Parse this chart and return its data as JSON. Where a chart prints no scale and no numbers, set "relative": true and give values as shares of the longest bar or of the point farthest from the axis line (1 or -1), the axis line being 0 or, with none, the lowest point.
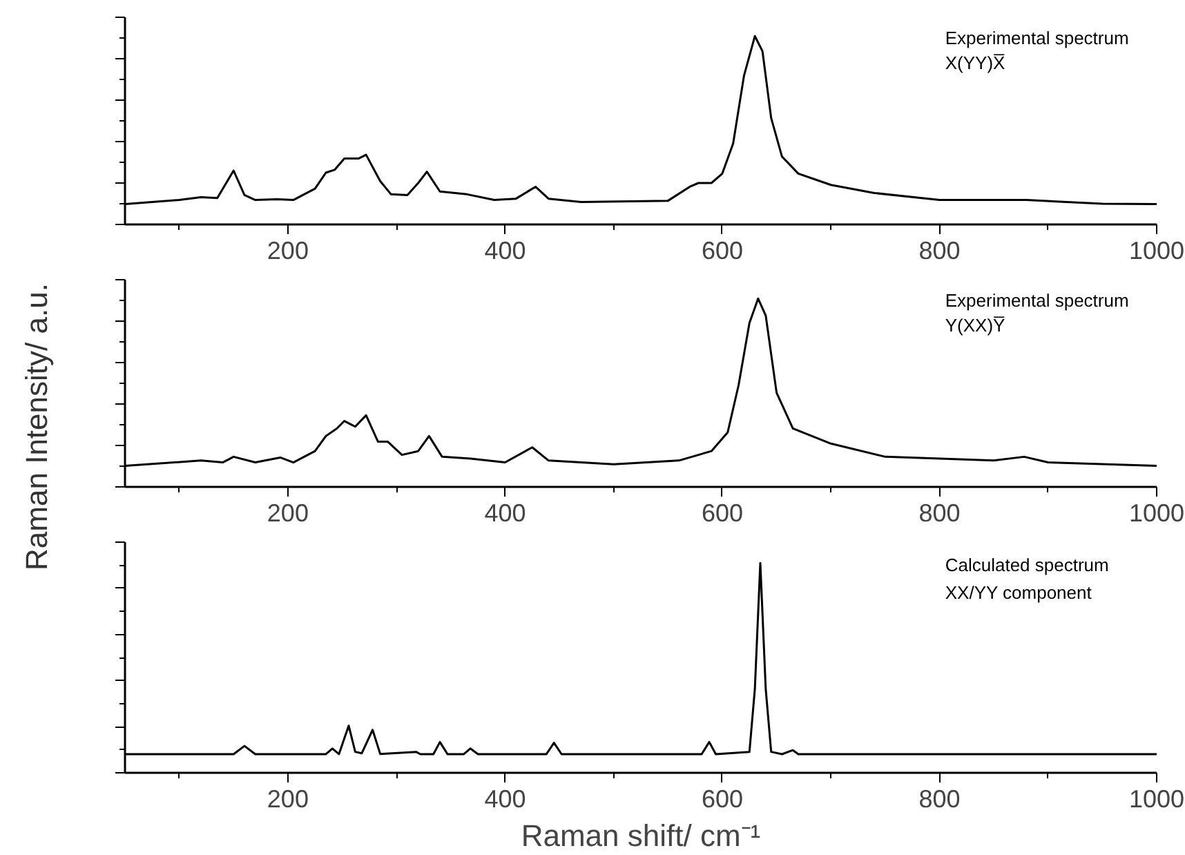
{
  "chart_data": [
    {
      "type": "line",
      "relative": true,
      "tick_labels": "x",
      "xlim": [
        50,
        1000
      ],
      "xticks": [
        {
          "value": 100,
          "label": null
        },
        200,
        {
          "value": 300,
          "label": null
        },
        400,
        {
          "value": 500,
          "label": null
        },
        600,
        {
          "value": 700,
          "label": null
        },
        800,
        {
          "value": 900,
          "label": null
        },
        1000
      ],
      "annotations": [
        "Experimental spectrum",
        "X(YY)X̅"
      ],
      "x": [
        50,
        100,
        120,
        135,
        150,
        160,
        170,
        190,
        205,
        225,
        235,
        243,
        252,
        265,
        272,
        285,
        295,
        310,
        320,
        328,
        340,
        365,
        390,
        410,
        428,
        440,
        470,
        550,
        570,
        578,
        590,
        600,
        610,
        620,
        630,
        637,
        645,
        655,
        670,
        700,
        740,
        800,
        880,
        950,
        1000
      ],
      "series": [
        {
          "color": "#000000",
          "values": [
            0.108,
            0.13,
            0.145,
            0.14,
            0.286,
            0.156,
            0.13,
            0.134,
            0.13,
            0.19,
            0.275,
            0.29,
            0.35,
            0.35,
            0.37,
            0.23,
            0.16,
            0.156,
            0.22,
            0.28,
            0.175,
            0.16,
            0.13,
            0.137,
            0.2,
            0.137,
            0.119,
            0.126,
            0.2,
            0.22,
            0.22,
            0.27,
            0.43,
            0.79,
            1.0,
            0.92,
            0.565,
            0.36,
            0.27,
            0.21,
            0.167,
            0.13,
            0.13,
            0.11,
            0.108
          ]
        }
      ]
    },
    {
      "type": "line",
      "relative": true,
      "tick_labels": "x",
      "ylabel": "Raman Intensity/ a.u.",
      "xlim": [
        50,
        1000
      ],
      "xticks": [
        {
          "value": 100,
          "label": null
        },
        200,
        {
          "value": 300,
          "label": null
        },
        400,
        {
          "value": 500,
          "label": null
        },
        600,
        {
          "value": 700,
          "label": null
        },
        800,
        {
          "value": 900,
          "label": null
        },
        1000
      ],
      "annotations": [
        "Experimental spectrum",
        "Y(XX)Y̅"
      ],
      "x": [
        50,
        120,
        140,
        150,
        170,
        193,
        205,
        225,
        235,
        245,
        252,
        262,
        272,
        283,
        292,
        305,
        320,
        330,
        342,
        368,
        400,
        425,
        440,
        500,
        560,
        590,
        605,
        615,
        625,
        633,
        640,
        650,
        665,
        700,
        750,
        850,
        878,
        900,
        1000
      ],
      "series": [
        {
          "color": "#000000",
          "values": [
            0.112,
            0.14,
            0.13,
            0.16,
            0.13,
            0.156,
            0.13,
            0.19,
            0.27,
            0.31,
            0.35,
            0.32,
            0.38,
            0.24,
            0.24,
            0.17,
            0.19,
            0.27,
            0.16,
            0.15,
            0.13,
            0.21,
            0.14,
            0.12,
            0.14,
            0.19,
            0.29,
            0.54,
            0.87,
            1.0,
            0.91,
            0.5,
            0.31,
            0.23,
            0.16,
            0.14,
            0.16,
            0.13,
            0.112
          ]
        }
      ]
    },
    {
      "type": "line",
      "relative": true,
      "tick_labels": "x",
      "xlabel": "Raman shift/ cm⁻¹",
      "xlim": [
        50,
        1000
      ],
      "xticks": [
        {
          "value": 100,
          "label": null
        },
        200,
        {
          "value": 300,
          "label": null
        },
        400,
        {
          "value": 500,
          "label": null
        },
        600,
        {
          "value": 700,
          "label": null
        },
        800,
        {
          "value": 900,
          "label": null
        },
        1000
      ],
      "annotations": [
        "Calculated spectrum",
        "XX/YY component"
      ],
      "x": [
        50,
        150,
        160,
        170,
        235,
        241,
        247,
        256,
        262,
        268,
        278,
        285,
        318,
        322,
        334,
        340,
        347,
        362,
        368,
        375,
        438,
        445,
        452,
        581,
        588,
        594,
        625,
        630,
        635,
        640,
        645,
        655,
        665,
        670,
        1000
      ],
      "series": [
        {
          "color": "#000000",
          "values": [
            0.089,
            0.089,
            0.128,
            0.089,
            0.089,
            0.116,
            0.089,
            0.225,
            0.1,
            0.093,
            0.205,
            0.09,
            0.1,
            0.089,
            0.089,
            0.147,
            0.089,
            0.089,
            0.116,
            0.089,
            0.089,
            0.143,
            0.089,
            0.089,
            0.147,
            0.089,
            0.1,
            0.4,
            1.0,
            0.4,
            0.1,
            0.089,
            0.108,
            0.089,
            0.089
          ]
        }
      ]
    }
  ]
}
